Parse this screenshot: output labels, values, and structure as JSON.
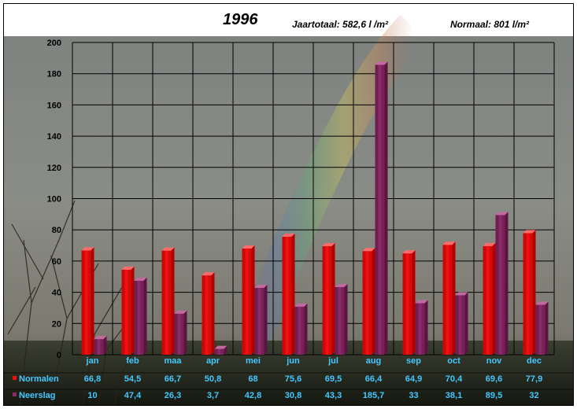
{
  "header": {
    "title": "1996",
    "annual_total": "Jaartotaal: 582,6  l /m²",
    "normal_total": "Normaal: 801 l/m²"
  },
  "colors": {
    "normalen": "#ee1111",
    "neerslag": "#8a2a66",
    "month_text": "#44c8ff",
    "legend_text": "#44c8ff"
  },
  "chart_data": {
    "type": "bar",
    "title": "1996",
    "categories": [
      "jan",
      "feb",
      "maa",
      "apr",
      "mei",
      "jun",
      "jul",
      "aug",
      "sep",
      "oct",
      "nov",
      "dec"
    ],
    "series": [
      {
        "name": "Normalen",
        "values": [
          66.8,
          54.5,
          66.7,
          50.8,
          68,
          75.6,
          69.5,
          66.4,
          64.9,
          70.4,
          69.6,
          77.9
        ],
        "labels": [
          "66,8",
          "54,5",
          "66,7",
          "50,8",
          "68",
          "75,6",
          "69,5",
          "66,4",
          "64,9",
          "70,4",
          "69,6",
          "77,9"
        ]
      },
      {
        "name": "Neerslag",
        "values": [
          10,
          47.4,
          26.3,
          3.7,
          42.8,
          30.8,
          43.3,
          185.7,
          33,
          38.1,
          89.5,
          32
        ],
        "labels": [
          "10",
          "47,4",
          "26,3",
          "3,7",
          "42,8",
          "30,8",
          "43,3",
          "185,7",
          "33",
          "38,1",
          "89,5",
          "32"
        ]
      }
    ],
    "ylim": [
      0,
      200
    ],
    "yticks": [
      0,
      20,
      40,
      60,
      80,
      100,
      120,
      140,
      160,
      180,
      200
    ],
    "grid": true,
    "legend": "data-table-bottom",
    "background": "photo-rainbow"
  }
}
